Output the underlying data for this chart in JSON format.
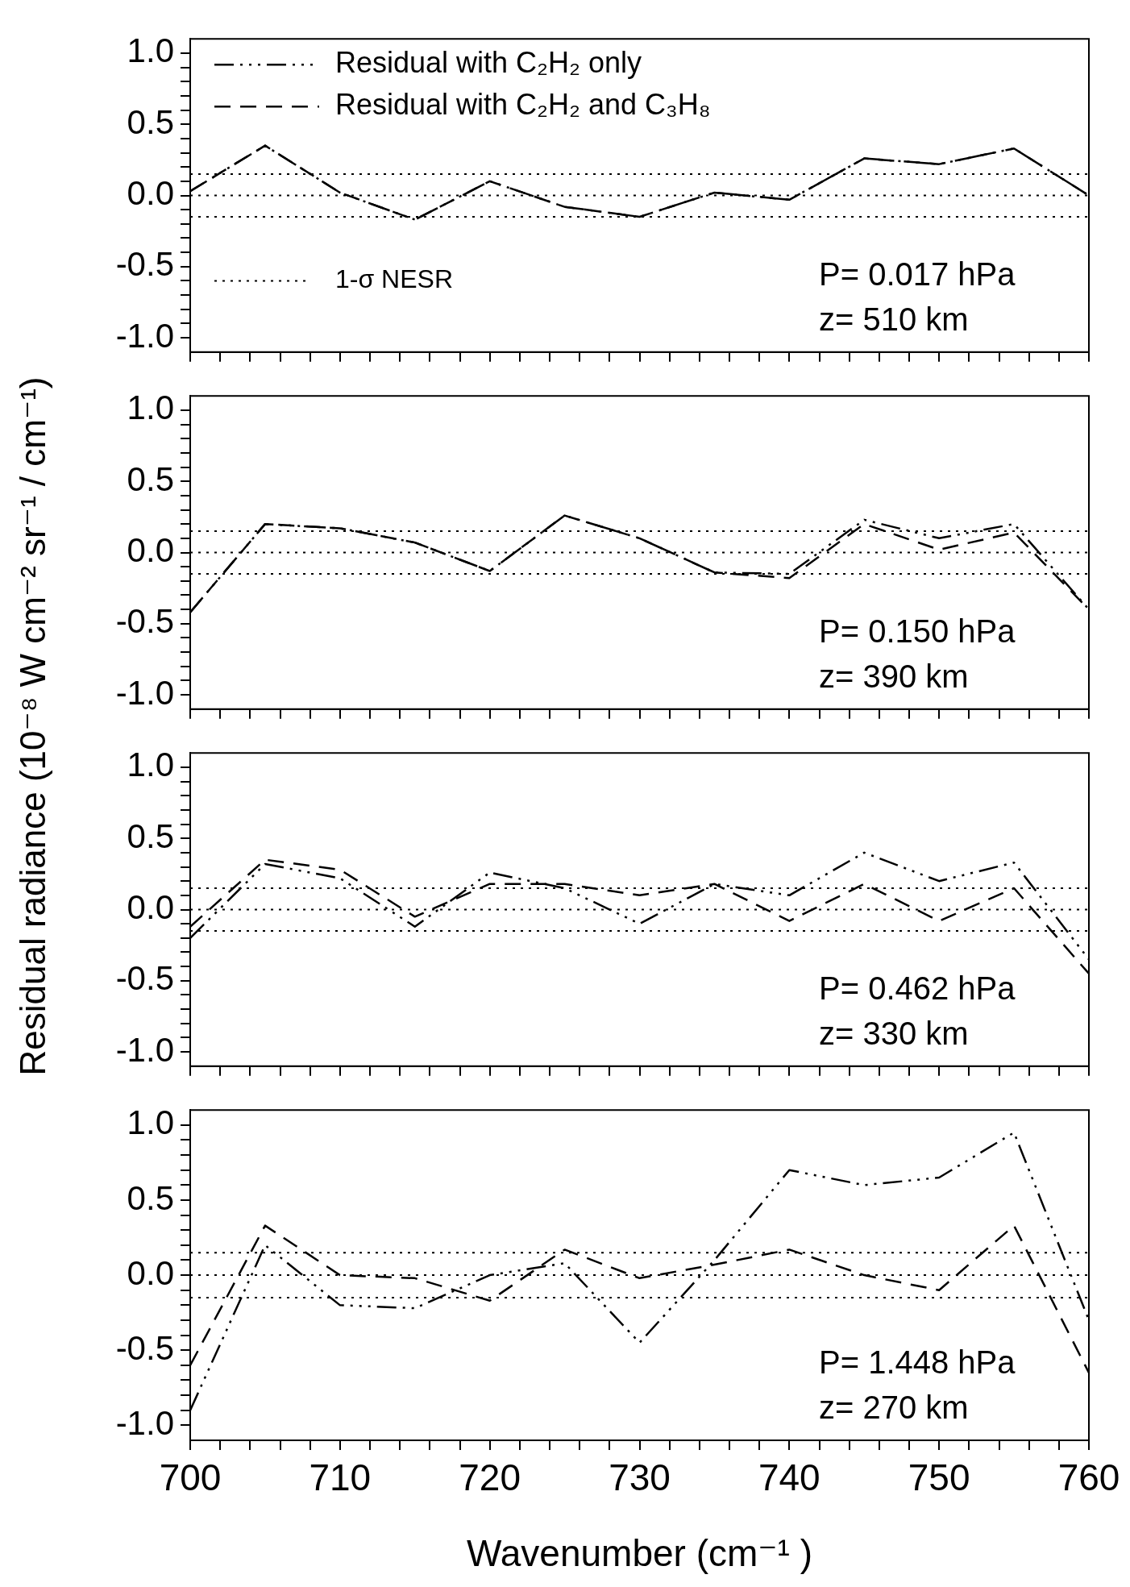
{
  "chart_data": [
    {
      "type": "line",
      "ylabel": "Residual radiance (10⁻⁸ W cm⁻² sr⁻¹ / cm⁻¹)",
      "x": [
        700,
        705,
        710,
        715,
        720,
        725,
        730,
        735,
        740,
        745,
        750,
        755,
        760
      ],
      "xlim": [
        700,
        760
      ],
      "ylim": [
        -1.1,
        1.1
      ],
      "xticks": [
        700,
        {
          "value": 702,
          "label": null
        },
        {
          "value": 704,
          "label": null
        },
        {
          "value": 706,
          "label": null
        },
        {
          "value": 708,
          "label": null
        },
        710,
        {
          "value": 712,
          "label": null
        },
        {
          "value": 714,
          "label": null
        },
        {
          "value": 716,
          "label": null
        },
        {
          "value": 718,
          "label": null
        },
        720,
        {
          "value": 722,
          "label": null
        },
        {
          "value": 724,
          "label": null
        },
        {
          "value": 726,
          "label": null
        },
        {
          "value": 728,
          "label": null
        },
        730,
        {
          "value": 732,
          "label": null
        },
        {
          "value": 734,
          "label": null
        },
        {
          "value": 736,
          "label": null
        },
        {
          "value": 738,
          "label": null
        },
        740,
        {
          "value": 742,
          "label": null
        },
        {
          "value": 744,
          "label": null
        },
        {
          "value": 746,
          "label": null
        },
        {
          "value": 748,
          "label": null
        },
        750,
        {
          "value": 752,
          "label": null
        },
        {
          "value": 754,
          "label": null
        },
        {
          "value": 756,
          "label": null
        },
        {
          "value": 758,
          "label": null
        },
        760
      ],
      "yticks": [
        {
          "value": -1,
          "label": "-1.0"
        },
        {
          "value": -0.9,
          "label": null
        },
        {
          "value": -0.8,
          "label": null
        },
        {
          "value": -0.7,
          "label": null
        },
        {
          "value": -0.6,
          "label": null
        },
        {
          "value": -0.5,
          "label": "-0.5"
        },
        {
          "value": -0.4,
          "label": null
        },
        {
          "value": -0.3,
          "label": null
        },
        {
          "value": -0.2,
          "label": null
        },
        {
          "value": -0.1,
          "label": null
        },
        {
          "value": 0,
          "label": "0.0"
        },
        {
          "value": 0.1,
          "label": null
        },
        {
          "value": 0.2,
          "label": null
        },
        {
          "value": 0.3,
          "label": null
        },
        {
          "value": 0.4,
          "label": null
        },
        {
          "value": 0.5,
          "label": "0.5"
        },
        {
          "value": 0.6,
          "label": null
        },
        {
          "value": 0.7,
          "label": null
        },
        {
          "value": 0.8,
          "label": null
        },
        {
          "value": 0.9,
          "label": null
        },
        {
          "value": 1,
          "label": "1.0"
        }
      ],
      "tick_labels": "y",
      "legend": "top left",
      "series": [
        {
          "name": "Residual with C₂H₂ only",
          "color": "#000000",
          "line_style": "dashdot",
          "values": [
            0.03,
            0.35,
            0.02,
            -0.17,
            0.1,
            -0.08,
            -0.15,
            0.02,
            -0.03,
            0.26,
            0.22,
            0.33,
            0.0
          ]
        },
        {
          "name": "Residual with C₂H₂ and C₃H₈",
          "color": "#000000",
          "line_style": "dashed",
          "values": [
            0.03,
            0.35,
            0.02,
            -0.17,
            0.1,
            -0.08,
            -0.15,
            0.02,
            -0.03,
            0.26,
            0.22,
            0.33,
            0.0
          ]
        }
      ],
      "ref_lines": [
        {
          "axis": "y",
          "value": 0.15,
          "label": "1-σ NESR",
          "line_style": "dotted",
          "color": "#000000"
        },
        {
          "axis": "y",
          "value": 0,
          "line_style": "dotted",
          "color": "#000000"
        },
        {
          "axis": "y",
          "value": -0.15,
          "line_style": "dotted",
          "color": "#000000"
        }
      ],
      "annotations": [
        "P= 0.017 hPa",
        "z= 510 km"
      ]
    },
    {
      "type": "line",
      "x": [
        700,
        705,
        710,
        715,
        720,
        725,
        730,
        735,
        740,
        745,
        750,
        755,
        760
      ],
      "xlim": [
        700,
        760
      ],
      "ylim": [
        -1.1,
        1.1
      ],
      "xticks": [
        700,
        {
          "value": 702,
          "label": null
        },
        {
          "value": 704,
          "label": null
        },
        {
          "value": 706,
          "label": null
        },
        {
          "value": 708,
          "label": null
        },
        710,
        {
          "value": 712,
          "label": null
        },
        {
          "value": 714,
          "label": null
        },
        {
          "value": 716,
          "label": null
        },
        {
          "value": 718,
          "label": null
        },
        720,
        {
          "value": 722,
          "label": null
        },
        {
          "value": 724,
          "label": null
        },
        {
          "value": 726,
          "label": null
        },
        {
          "value": 728,
          "label": null
        },
        730,
        {
          "value": 732,
          "label": null
        },
        {
          "value": 734,
          "label": null
        },
        {
          "value": 736,
          "label": null
        },
        {
          "value": 738,
          "label": null
        },
        740,
        {
          "value": 742,
          "label": null
        },
        {
          "value": 744,
          "label": null
        },
        {
          "value": 746,
          "label": null
        },
        {
          "value": 748,
          "label": null
        },
        750,
        {
          "value": 752,
          "label": null
        },
        {
          "value": 754,
          "label": null
        },
        {
          "value": 756,
          "label": null
        },
        {
          "value": 758,
          "label": null
        },
        760
      ],
      "yticks": [
        {
          "value": -1,
          "label": "-1.0"
        },
        {
          "value": -0.9,
          "label": null
        },
        {
          "value": -0.8,
          "label": null
        },
        {
          "value": -0.7,
          "label": null
        },
        {
          "value": -0.6,
          "label": null
        },
        {
          "value": -0.5,
          "label": "-0.5"
        },
        {
          "value": -0.4,
          "label": null
        },
        {
          "value": -0.3,
          "label": null
        },
        {
          "value": -0.2,
          "label": null
        },
        {
          "value": -0.1,
          "label": null
        },
        {
          "value": 0,
          "label": "0.0"
        },
        {
          "value": 0.1,
          "label": null
        },
        {
          "value": 0.2,
          "label": null
        },
        {
          "value": 0.3,
          "label": null
        },
        {
          "value": 0.4,
          "label": null
        },
        {
          "value": 0.5,
          "label": "0.5"
        },
        {
          "value": 0.6,
          "label": null
        },
        {
          "value": 0.7,
          "label": null
        },
        {
          "value": 0.8,
          "label": null
        },
        {
          "value": 0.9,
          "label": null
        },
        {
          "value": 1,
          "label": "1.0"
        }
      ],
      "tick_labels": "y",
      "series": [
        {
          "color": "#000000",
          "line_style": "dashdot",
          "values": [
            -0.42,
            0.2,
            0.17,
            0.07,
            -0.13,
            0.26,
            0.1,
            -0.14,
            -0.15,
            0.23,
            0.1,
            0.2,
            -0.4
          ]
        },
        {
          "color": "#000000",
          "line_style": "dashed",
          "values": [
            -0.42,
            0.2,
            0.17,
            0.07,
            -0.13,
            0.26,
            0.1,
            -0.14,
            -0.18,
            0.2,
            0.02,
            0.14,
            -0.4
          ]
        }
      ],
      "ref_lines": [
        {
          "axis": "y",
          "value": 0.15,
          "line_style": "dotted",
          "color": "#000000"
        },
        {
          "axis": "y",
          "value": 0,
          "line_style": "dotted",
          "color": "#000000"
        },
        {
          "axis": "y",
          "value": -0.15,
          "line_style": "dotted",
          "color": "#000000"
        }
      ],
      "annotations": [
        "P= 0.150 hPa",
        "z= 390 km"
      ]
    },
    {
      "type": "line",
      "x": [
        700,
        705,
        710,
        715,
        720,
        725,
        730,
        735,
        740,
        745,
        750,
        755,
        760
      ],
      "xlim": [
        700,
        760
      ],
      "ylim": [
        -1.1,
        1.1
      ],
      "xticks": [
        700,
        {
          "value": 702,
          "label": null
        },
        {
          "value": 704,
          "label": null
        },
        {
          "value": 706,
          "label": null
        },
        {
          "value": 708,
          "label": null
        },
        710,
        {
          "value": 712,
          "label": null
        },
        {
          "value": 714,
          "label": null
        },
        {
          "value": 716,
          "label": null
        },
        {
          "value": 718,
          "label": null
        },
        720,
        {
          "value": 722,
          "label": null
        },
        {
          "value": 724,
          "label": null
        },
        {
          "value": 726,
          "label": null
        },
        {
          "value": 728,
          "label": null
        },
        730,
        {
          "value": 732,
          "label": null
        },
        {
          "value": 734,
          "label": null
        },
        {
          "value": 736,
          "label": null
        },
        {
          "value": 738,
          "label": null
        },
        740,
        {
          "value": 742,
          "label": null
        },
        {
          "value": 744,
          "label": null
        },
        {
          "value": 746,
          "label": null
        },
        {
          "value": 748,
          "label": null
        },
        750,
        {
          "value": 752,
          "label": null
        },
        {
          "value": 754,
          "label": null
        },
        {
          "value": 756,
          "label": null
        },
        {
          "value": 758,
          "label": null
        },
        760
      ],
      "yticks": [
        {
          "value": -1,
          "label": "-1.0"
        },
        {
          "value": -0.9,
          "label": null
        },
        {
          "value": -0.8,
          "label": null
        },
        {
          "value": -0.7,
          "label": null
        },
        {
          "value": -0.6,
          "label": null
        },
        {
          "value": -0.5,
          "label": "-0.5"
        },
        {
          "value": -0.4,
          "label": null
        },
        {
          "value": -0.3,
          "label": null
        },
        {
          "value": -0.2,
          "label": null
        },
        {
          "value": -0.1,
          "label": null
        },
        {
          "value": 0,
          "label": "0.0"
        },
        {
          "value": 0.1,
          "label": null
        },
        {
          "value": 0.2,
          "label": null
        },
        {
          "value": 0.3,
          "label": null
        },
        {
          "value": 0.4,
          "label": null
        },
        {
          "value": 0.5,
          "label": "0.5"
        },
        {
          "value": 0.6,
          "label": null
        },
        {
          "value": 0.7,
          "label": null
        },
        {
          "value": 0.8,
          "label": null
        },
        {
          "value": 0.9,
          "label": null
        },
        {
          "value": 1,
          "label": "1.0"
        }
      ],
      "tick_labels": "y",
      "series": [
        {
          "color": "#000000",
          "line_style": "dashdot",
          "values": [
            -0.2,
            0.32,
            0.22,
            -0.12,
            0.26,
            0.15,
            -0.1,
            0.18,
            0.1,
            0.4,
            0.2,
            0.33,
            -0.35
          ]
        },
        {
          "color": "#000000",
          "line_style": "dashed",
          "values": [
            -0.12,
            0.35,
            0.28,
            -0.05,
            0.18,
            0.18,
            0.1,
            0.18,
            -0.08,
            0.18,
            -0.08,
            0.15,
            -0.45
          ]
        }
      ],
      "ref_lines": [
        {
          "axis": "y",
          "value": 0.15,
          "line_style": "dotted",
          "color": "#000000"
        },
        {
          "axis": "y",
          "value": 0,
          "line_style": "dotted",
          "color": "#000000"
        },
        {
          "axis": "y",
          "value": -0.15,
          "line_style": "dotted",
          "color": "#000000"
        }
      ],
      "annotations": [
        "P= 0.462 hPa",
        "z= 330 km"
      ]
    },
    {
      "type": "line",
      "xlabel": "Wavenumber (cm⁻¹ )",
      "x": [
        700,
        705,
        710,
        715,
        720,
        725,
        730,
        735,
        740,
        745,
        750,
        755,
        760
      ],
      "xlim": [
        700,
        760
      ],
      "ylim": [
        -1.1,
        1.1
      ],
      "xticks": [
        700,
        {
          "value": 702,
          "label": null
        },
        {
          "value": 704,
          "label": null
        },
        {
          "value": 706,
          "label": null
        },
        {
          "value": 708,
          "label": null
        },
        710,
        {
          "value": 712,
          "label": null
        },
        {
          "value": 714,
          "label": null
        },
        {
          "value": 716,
          "label": null
        },
        {
          "value": 718,
          "label": null
        },
        720,
        {
          "value": 722,
          "label": null
        },
        {
          "value": 724,
          "label": null
        },
        {
          "value": 726,
          "label": null
        },
        {
          "value": 728,
          "label": null
        },
        730,
        {
          "value": 732,
          "label": null
        },
        {
          "value": 734,
          "label": null
        },
        {
          "value": 736,
          "label": null
        },
        {
          "value": 738,
          "label": null
        },
        740,
        {
          "value": 742,
          "label": null
        },
        {
          "value": 744,
          "label": null
        },
        {
          "value": 746,
          "label": null
        },
        {
          "value": 748,
          "label": null
        },
        750,
        {
          "value": 752,
          "label": null
        },
        {
          "value": 754,
          "label": null
        },
        {
          "value": 756,
          "label": null
        },
        {
          "value": 758,
          "label": null
        },
        760
      ],
      "yticks": [
        {
          "value": -1,
          "label": "-1.0"
        },
        {
          "value": -0.9,
          "label": null
        },
        {
          "value": -0.8,
          "label": null
        },
        {
          "value": -0.7,
          "label": null
        },
        {
          "value": -0.6,
          "label": null
        },
        {
          "value": -0.5,
          "label": "-0.5"
        },
        {
          "value": -0.4,
          "label": null
        },
        {
          "value": -0.3,
          "label": null
        },
        {
          "value": -0.2,
          "label": null
        },
        {
          "value": -0.1,
          "label": null
        },
        {
          "value": 0,
          "label": "0.0"
        },
        {
          "value": 0.1,
          "label": null
        },
        {
          "value": 0.2,
          "label": null
        },
        {
          "value": 0.3,
          "label": null
        },
        {
          "value": 0.4,
          "label": null
        },
        {
          "value": 0.5,
          "label": "0.5"
        },
        {
          "value": 0.6,
          "label": null
        },
        {
          "value": 0.7,
          "label": null
        },
        {
          "value": 0.8,
          "label": null
        },
        {
          "value": 0.9,
          "label": null
        },
        {
          "value": 1,
          "label": "1.0"
        }
      ],
      "series": [
        {
          "color": "#000000",
          "line_style": "dashdot",
          "values": [
            -0.9,
            0.2,
            -0.2,
            -0.22,
            0.0,
            0.08,
            -0.45,
            0.1,
            0.7,
            0.6,
            0.65,
            0.95,
            -0.3
          ]
        },
        {
          "color": "#000000",
          "line_style": "dashed",
          "values": [
            -0.6,
            0.33,
            0.0,
            -0.02,
            -0.17,
            0.17,
            -0.02,
            0.07,
            0.17,
            0.0,
            -0.1,
            0.33,
            -0.65
          ]
        }
      ],
      "ref_lines": [
        {
          "axis": "y",
          "value": 0.15,
          "line_style": "dotted",
          "color": "#000000"
        },
        {
          "axis": "y",
          "value": 0,
          "line_style": "dotted",
          "color": "#000000"
        },
        {
          "axis": "y",
          "value": -0.15,
          "line_style": "dotted",
          "color": "#000000"
        }
      ],
      "annotations": [
        "P= 1.448 hPa",
        "z= 270 km"
      ]
    }
  ]
}
